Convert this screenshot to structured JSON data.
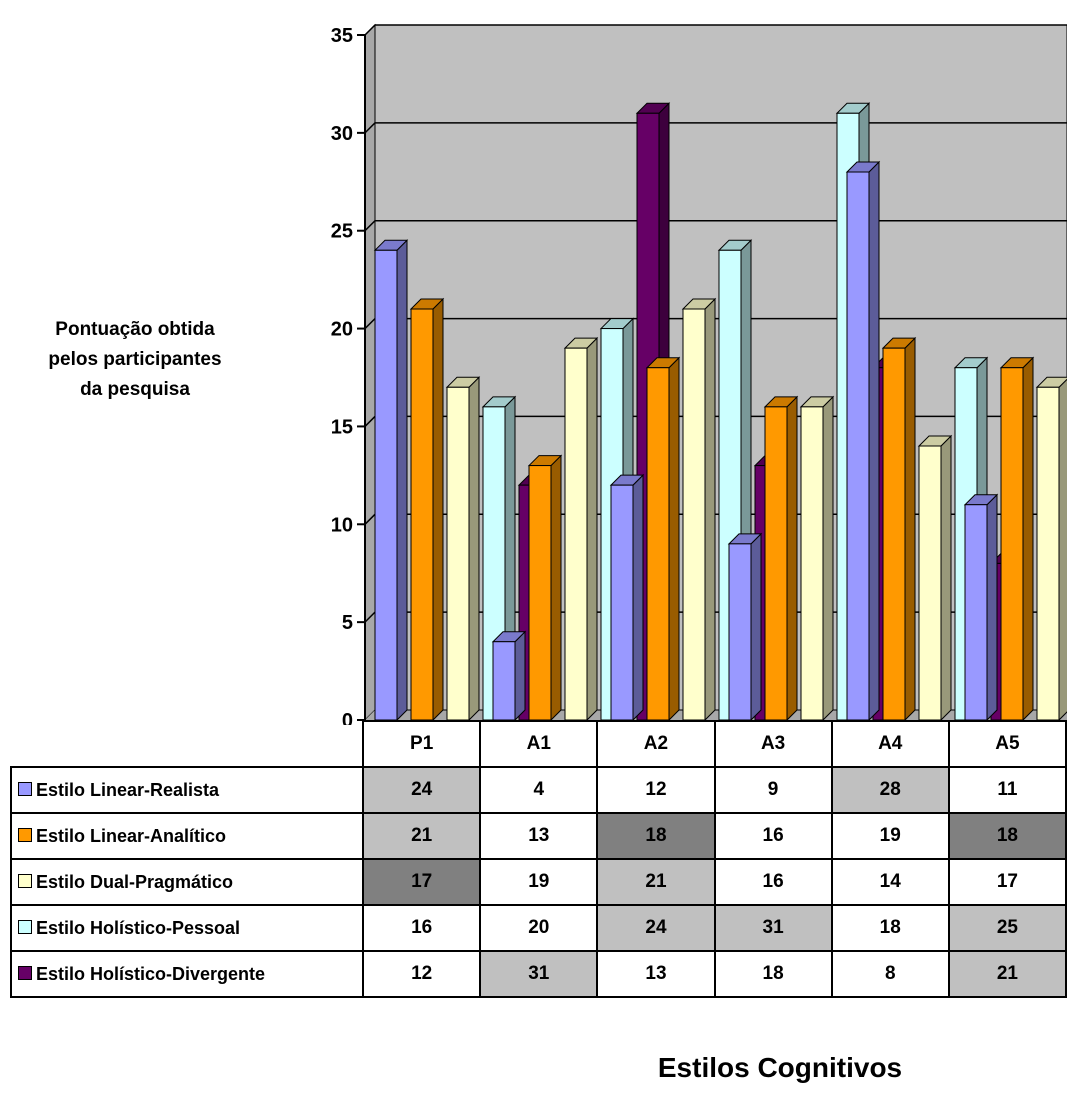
{
  "chart_data": {
    "type": "bar",
    "title": "",
    "ylabel": "Pontuação obtida\npelos participantes\nda pesquisa",
    "xlabel": "Estilos Cognitivos",
    "ylim": [
      0,
      35
    ],
    "yticks": [
      0,
      5,
      10,
      15,
      20,
      25,
      30,
      35
    ],
    "grid": true,
    "legend": "table-left",
    "categories": [
      "P1",
      "A1",
      "A2",
      "A3",
      "A4",
      "A5"
    ],
    "series": [
      {
        "name": "Estilo Linear-Realista",
        "color": "#9999ff",
        "values": [
          24,
          4,
          12,
          9,
          28,
          11
        ]
      },
      {
        "name": "Estilo Linear-Analítico",
        "color": "#ff9900",
        "values": [
          21,
          13,
          18,
          16,
          19,
          18
        ]
      },
      {
        "name": "Estilo Dual-Pragmático",
        "color": "#ffffcc",
        "values": [
          17,
          19,
          21,
          16,
          14,
          17
        ]
      },
      {
        "name": "Estilo Holístico-Pessoal",
        "color": "#ccffff",
        "values": [
          16,
          20,
          24,
          31,
          18,
          25
        ]
      },
      {
        "name": "Estilo Holístico-Divergente",
        "color": "#660066",
        "values": [
          12,
          31,
          13,
          18,
          8,
          21
        ]
      }
    ],
    "cell_shading": [
      [
        "light",
        "",
        "",
        "",
        "light",
        ""
      ],
      [
        "light",
        "",
        "dark",
        "",
        "",
        "dark"
      ],
      [
        "dark",
        "",
        "light",
        "",
        "",
        ""
      ],
      [
        "",
        "",
        "light",
        "light",
        "",
        "light"
      ],
      [
        "",
        "light",
        "",
        "",
        "",
        "light"
      ]
    ],
    "plot_background": "#c0c0c0"
  }
}
